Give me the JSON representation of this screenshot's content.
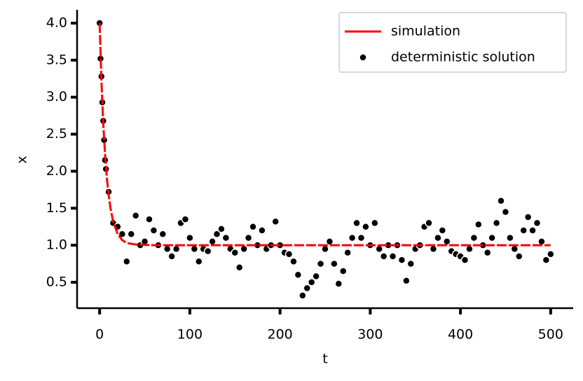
{
  "chart_data": {
    "type": "line",
    "xlabel": "t",
    "ylabel": "x",
    "xlim": [
      -25,
      525
    ],
    "xticks": [
      0,
      100,
      200,
      300,
      400,
      500
    ],
    "ylim": [
      0.15,
      4.18
    ],
    "yticks": [
      0.5,
      {
        "value": 1,
        "label": "1.0"
      },
      1.5,
      {
        "value": 2,
        "label": "2.0"
      },
      2.5,
      {
        "value": 3,
        "label": "3.0"
      },
      3.5,
      {
        "value": 4,
        "label": "4.0"
      }
    ],
    "legend": "upper right",
    "series": [
      {
        "name": "simulation",
        "color": "#ff0000",
        "style": "line",
        "x": [
          0,
          2,
          4,
          6,
          8,
          10,
          12,
          15,
          20,
          25,
          30,
          40,
          60,
          100,
          200,
          300,
          400,
          500
        ],
        "values": [
          4,
          3.22,
          2.65,
          2.23,
          1.91,
          1.68,
          1.5,
          1.32,
          1.15,
          1.07,
          1.03,
          1.01,
          1,
          1,
          1,
          1,
          1,
          1
        ]
      },
      {
        "name": "deterministic solution",
        "color": "#000000",
        "style": "scatter",
        "x": [
          0,
          1,
          2,
          3,
          4,
          5,
          6,
          7,
          10,
          15,
          20,
          25,
          30,
          35,
          40,
          45,
          50,
          55,
          60,
          65,
          70,
          75,
          80,
          85,
          90,
          95,
          100,
          105,
          110,
          115,
          120,
          125,
          130,
          135,
          140,
          145,
          150,
          155,
          160,
          165,
          170,
          175,
          180,
          185,
          190,
          195,
          200,
          205,
          210,
          215,
          220,
          225,
          230,
          235,
          240,
          245,
          250,
          255,
          260,
          265,
          270,
          275,
          280,
          285,
          290,
          295,
          300,
          305,
          310,
          315,
          320,
          325,
          330,
          335,
          340,
          345,
          350,
          355,
          360,
          365,
          370,
          375,
          380,
          385,
          390,
          395,
          400,
          405,
          410,
          415,
          420,
          425,
          430,
          435,
          440,
          445,
          450,
          455,
          460,
          465,
          470,
          475,
          480,
          485,
          490,
          495,
          500
        ],
        "values": [
          4,
          3.52,
          3.28,
          2.93,
          2.68,
          2.42,
          2.15,
          2.03,
          1.72,
          1.3,
          1.25,
          1.15,
          0.78,
          1.15,
          1.4,
          1,
          1.05,
          1.35,
          1.2,
          1,
          1.15,
          0.95,
          0.85,
          0.95,
          1.3,
          1.35,
          1.1,
          0.95,
          0.78,
          0.95,
          0.92,
          1.05,
          1.15,
          1.22,
          1.1,
          0.95,
          0.9,
          0.7,
          0.95,
          1.1,
          1.25,
          1,
          1.2,
          0.95,
          1,
          1.32,
          1,
          0.9,
          0.88,
          0.78,
          0.6,
          0.32,
          0.42,
          0.5,
          0.58,
          0.75,
          0.95,
          1.05,
          0.75,
          0.48,
          0.65,
          0.9,
          1.1,
          1.3,
          1.1,
          1.25,
          1,
          1.3,
          0.95,
          0.85,
          1,
          0.85,
          1,
          0.8,
          0.52,
          0.75,
          0.95,
          1,
          1.25,
          1.3,
          0.95,
          1.1,
          1.2,
          1.05,
          0.92,
          0.88,
          0.85,
          0.8,
          0.95,
          1.1,
          1.28,
          1,
          0.9,
          1.1,
          1.3,
          1.6,
          1.45,
          1.1,
          0.95,
          0.85,
          1.2,
          1.38,
          1.2,
          1.3,
          1.05,
          0.8,
          0.88
        ]
      }
    ]
  }
}
